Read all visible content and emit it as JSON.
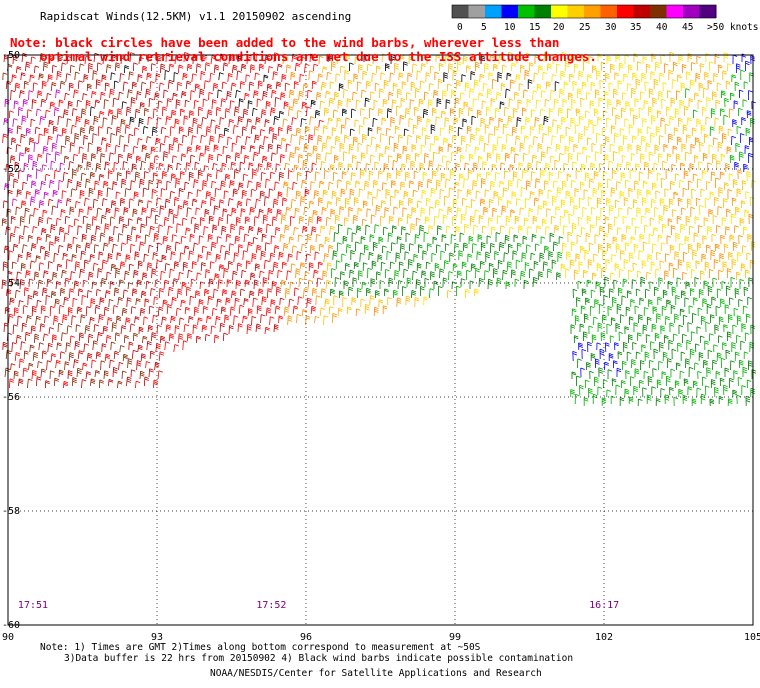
{
  "header": {
    "title": "Rapidscat Winds(12.5KM) v1.1 20150902 ascending"
  },
  "warning": {
    "line1": "Note: black circles have been added to the wind barbs, wherever less than",
    "line2": "optimal wind retrieval conditions are met due to the ISS attitude changes."
  },
  "legend": {
    "labels": [
      "0",
      "5",
      "10",
      "15",
      "20",
      "25",
      "30",
      "35",
      "40",
      "45",
      ">50 knots"
    ],
    "colors": [
      "#505050",
      "#a0a0a0",
      "#00a0ff",
      "#0000ff",
      "#00c000",
      "#008000",
      "#ffff00",
      "#ffd000",
      "#ffa000",
      "#ff6000",
      "#ff0000",
      "#c00000",
      "#803000",
      "#ff00ff",
      "#a000c0",
      "#500080"
    ]
  },
  "axes": {
    "lon_labels": [
      "90",
      "93",
      "96",
      "99",
      "102",
      "105"
    ],
    "lat_labels": [
      "-50",
      "-52",
      "-54",
      "-56",
      "-58",
      "-60"
    ],
    "lon_range": [
      90,
      105
    ],
    "lat_range": [
      -60,
      -50
    ]
  },
  "times": [
    {
      "label": "17:51",
      "lon": 90.2
    },
    {
      "label": "17:52",
      "lon": 95.0
    },
    {
      "label": "16:17",
      "lon": 101.7
    }
  ],
  "footer": {
    "note1": "Note: 1) Times are GMT 2)Times along bottom correspond to measurement at ~50S",
    "note2": "3)Data buffer is 22 hrs from 20150902 4) Black wind barbs indicate possible contamination",
    "credit": "NOAA/NESDIS/Center for Satellite Applications and Research"
  }
}
